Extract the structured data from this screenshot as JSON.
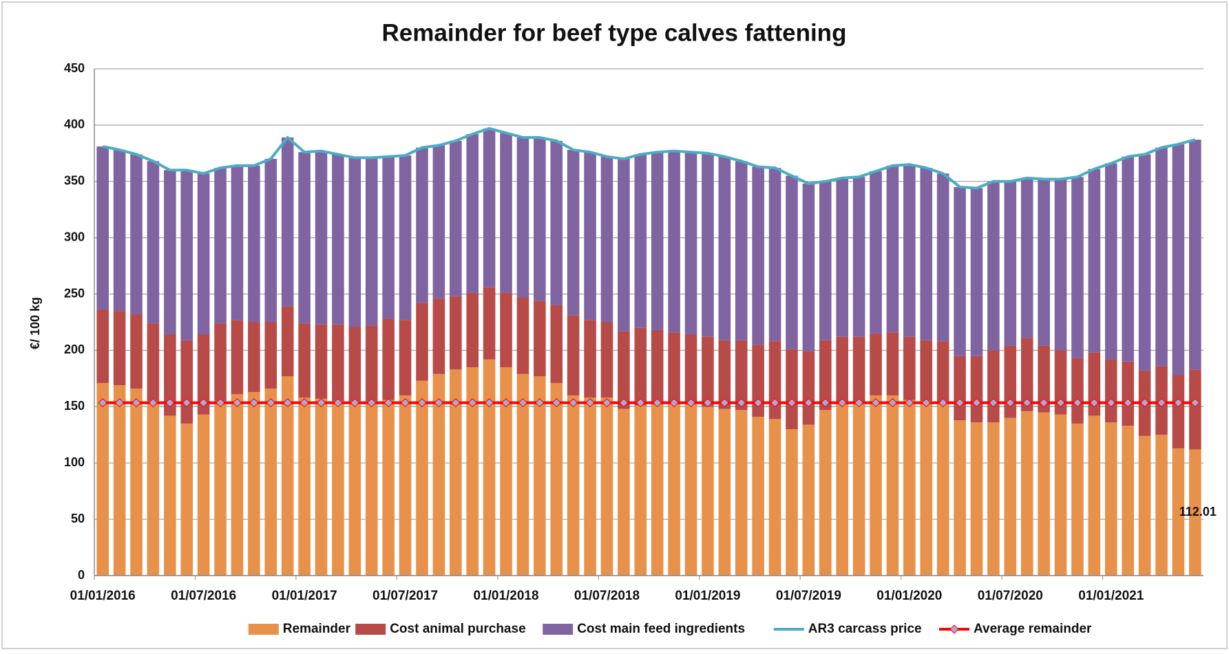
{
  "chart_data": {
    "type": "bar",
    "stacked": true,
    "title": "Remainder for beef type calves fattening",
    "y_label": "€/ 100 kg",
    "ylim": [
      0,
      450
    ],
    "yticks": [
      0,
      50,
      100,
      150,
      200,
      250,
      300,
      350,
      400,
      450
    ],
    "grid": true,
    "legend": "bottom",
    "categories": [
      "01/01/2016",
      null,
      null,
      null,
      null,
      null,
      "01/07/2016",
      null,
      null,
      null,
      null,
      null,
      "01/01/2017",
      null,
      null,
      null,
      null,
      null,
      "01/07/2017",
      null,
      null,
      null,
      null,
      null,
      "01/01/2018",
      null,
      null,
      null,
      null,
      null,
      "01/07/2018",
      null,
      null,
      null,
      null,
      null,
      "01/01/2019",
      null,
      null,
      null,
      null,
      null,
      "01/07/2019",
      null,
      null,
      null,
      null,
      null,
      "01/01/2020",
      null,
      null,
      null,
      null,
      null,
      "01/07/2020",
      null,
      null,
      null,
      null,
      null,
      "01/01/2021",
      null,
      null,
      null,
      null,
      null
    ],
    "series": [
      {
        "name": "Remainder",
        "type": "bar",
        "color": "#e8914a",
        "labeled_index": 65,
        "values": [
          171,
          169,
          166,
          155,
          142,
          135,
          143,
          155,
          161,
          163,
          166,
          177,
          158,
          157,
          155,
          155,
          155,
          156,
          160,
          173,
          179,
          183,
          185,
          192,
          185,
          179,
          177,
          171,
          160,
          158,
          158,
          148,
          151,
          152,
          152,
          152,
          150,
          148,
          147,
          141,
          139,
          130,
          134,
          147,
          152,
          153,
          160,
          160,
          156,
          155,
          153,
          138,
          136,
          136,
          140,
          146,
          145,
          143,
          135,
          142,
          136,
          133,
          124,
          125,
          113,
          112.01
        ]
      },
      {
        "name": "Cost animal purchase",
        "type": "bar",
        "color": "#b84a48",
        "values": [
          65,
          66,
          66,
          69,
          72,
          74,
          71,
          69,
          66,
          62,
          59,
          62,
          66,
          66,
          68,
          66,
          67,
          72,
          67,
          69,
          67,
          65,
          66,
          64,
          66,
          68,
          67,
          69,
          71,
          69,
          67,
          69,
          69,
          66,
          64,
          62,
          62,
          61,
          62,
          64,
          69,
          71,
          65,
          62,
          60,
          59,
          55,
          56,
          56,
          54,
          55,
          57,
          59,
          64,
          64,
          65,
          59,
          57,
          58,
          56,
          56,
          57,
          58,
          61,
          65,
          71
        ]
      },
      {
        "name": "Cost main feed ingredients",
        "type": "bar",
        "color": "#8064a2",
        "values": [
          145,
          143,
          142,
          144,
          146,
          151,
          143,
          138,
          137,
          139,
          145,
          150,
          152,
          154,
          151,
          150,
          149,
          144,
          146,
          138,
          136,
          138,
          141,
          141,
          142,
          142,
          145,
          146,
          147,
          149,
          147,
          153,
          154,
          158,
          161,
          162,
          163,
          163,
          159,
          158,
          154,
          154,
          149,
          141,
          141,
          142,
          144,
          148,
          153,
          153,
          149,
          150,
          149,
          150,
          146,
          142,
          148,
          152,
          161,
          163,
          174,
          182,
          192,
          194,
          205,
          204
        ]
      },
      {
        "name": "AR3 carcass price",
        "type": "line",
        "color": "#4bacc6",
        "values": [
          381,
          378,
          374,
          368,
          360,
          360,
          357,
          362,
          364,
          364,
          370,
          389,
          376,
          377,
          374,
          371,
          371,
          372,
          373,
          380,
          382,
          386,
          392,
          397,
          393,
          389,
          389,
          386,
          378,
          376,
          372,
          370,
          374,
          376,
          377,
          376,
          375,
          372,
          368,
          363,
          362,
          355,
          348,
          350,
          353,
          354,
          359,
          364,
          365,
          362,
          357,
          345,
          344,
          350,
          350,
          353,
          352,
          352,
          354,
          361,
          366,
          372,
          374,
          380,
          383,
          387
        ]
      },
      {
        "name": "Average remainder",
        "type": "line",
        "color": "#ff0000",
        "marker_color": "#a9a9d6",
        "values": [
          153.5,
          153.5,
          153.5,
          153.5,
          153.5,
          153.5,
          153.5,
          153.5,
          153.5,
          153.5,
          153.5,
          153.5,
          153.5,
          153.5,
          153.5,
          153.5,
          153.5,
          153.5,
          153.5,
          153.5,
          153.5,
          153.5,
          153.5,
          153.5,
          153.5,
          153.5,
          153.5,
          153.5,
          153.5,
          153.5,
          153.5,
          153.5,
          153.5,
          153.5,
          153.5,
          153.5,
          153.5,
          153.5,
          153.5,
          153.5,
          153.5,
          153.5,
          153.5,
          153.5,
          153.5,
          153.5,
          153.5,
          153.5,
          153.5,
          153.5,
          153.5,
          153.5,
          153.5,
          153.5,
          153.5,
          153.5,
          153.5,
          153.5,
          153.5,
          153.5,
          153.5,
          153.5,
          153.5,
          153.5,
          153.5,
          153.5
        ]
      }
    ]
  }
}
